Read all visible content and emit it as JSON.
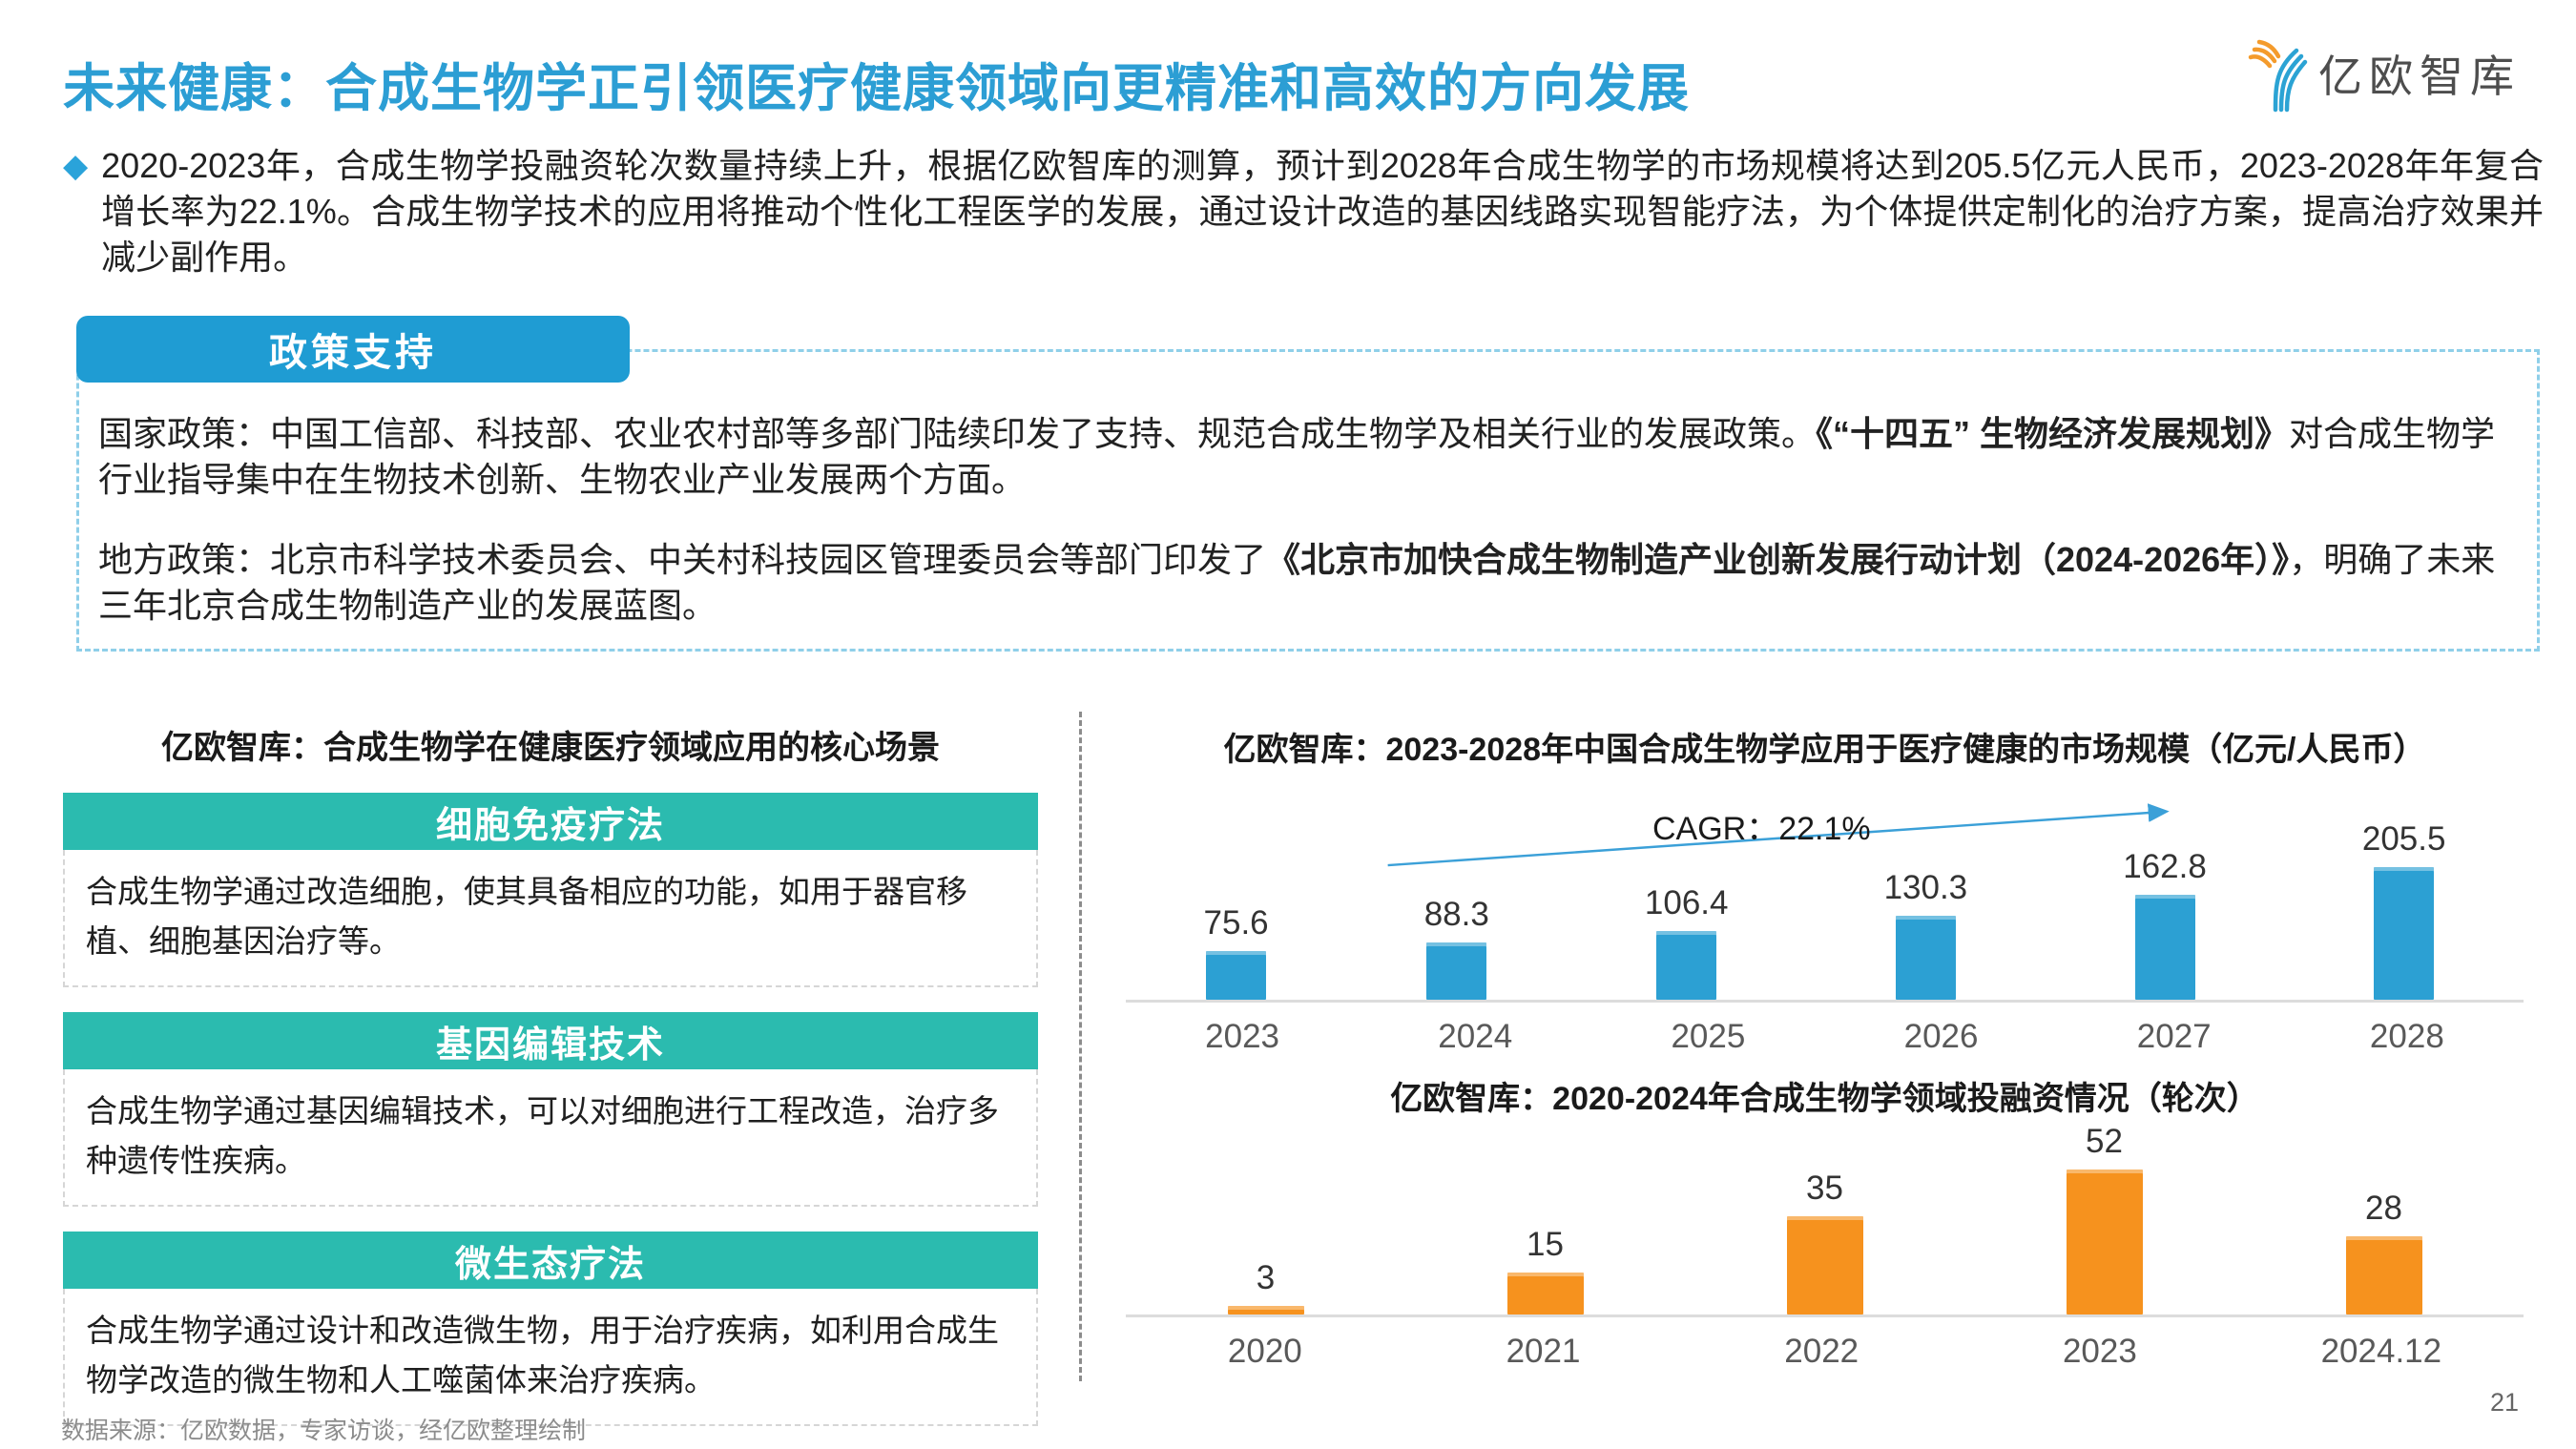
{
  "page": {
    "title": "未来健康：合成生物学正引领医疗健康领域向更精准和高效的方向发展",
    "logo_text": "亿欧智库",
    "page_number": "21",
    "source_note": "数据来源：亿欧数据，专家访谈，经亿欧整理绘制"
  },
  "summary": {
    "bullet": "◆",
    "text": "2020-2023年，合成生物学投融资轮次数量持续上升，根据亿欧智库的测算，预计到2028年合成生物学的市场规模将达到205.5亿元人民币，2023-2028年年复合增长率为22.1%。合成生物学技术的应用将推动个性化工程医学的发展，通过设计改造的基因线路实现智能疗法，为个体提供定制化的治疗方案，提高治疗效果并减少副作用。"
  },
  "policy": {
    "badge": "政策支持",
    "national": {
      "prefix": "国家政策：中国工信部、科技部、农业农村部等多部门陆续印发了支持、规范合成生物学及相关行业的发展政策。",
      "bold": "《“十四五” 生物经济发展规划》",
      "suffix": "对合成生物学行业指导集中在生物技术创新、生物农业产业发展两个方面。"
    },
    "local": {
      "prefix": "地方政策：北京市科学技术委员会、中关村科技园区管理委员会等部门印发了",
      "bold": "《北京市加快合成生物制造产业创新发展行动计划（2024-2026年）》",
      "suffix": "，明确了未来三年北京合成生物制造产业的发展蓝图。"
    }
  },
  "scenarios": {
    "title": "亿欧智库：合成生物学在健康医疗领域应用的核心场景",
    "cards": [
      {
        "header": "细胞免疫疗法",
        "body": "合成生物学通过改造细胞，使其具备相应的功能，如用于器官移植、细胞基因治疗等。"
      },
      {
        "header": "基因编辑技术",
        "body": "合成生物学通过基因编辑技术，可以对细胞进行工程改造，治疗多种遗传性疾病。"
      },
      {
        "header": "微生态疗法",
        "body": "合成生物学通过设计和改造微生物，用于治疗疾病，如利用合成生物学改造的微生物和人工噬菌体来治疗疾病。"
      }
    ]
  },
  "chart_data": [
    {
      "type": "bar",
      "title": "亿欧智库：2023-2028年中国合成生物学应用于医疗健康的市场规模（亿元/人民币）",
      "categories": [
        "2023",
        "2024",
        "2025",
        "2026",
        "2027",
        "2028"
      ],
      "values": [
        75.6,
        88.3,
        106.4,
        130.3,
        162.8,
        205.5
      ],
      "annotation": "CAGR：22.1%",
      "bar_color": "#2ca0d3",
      "ylim": [
        0,
        220
      ],
      "grid": false,
      "data_labels": true,
      "legend": "none"
    },
    {
      "type": "bar",
      "title": "亿欧智库：2020-2024年合成生物学领域投融资情况（轮次）",
      "categories": [
        "2020",
        "2021",
        "2022",
        "2023",
        "2024.12"
      ],
      "values": [
        3,
        15,
        35,
        52,
        28
      ],
      "bar_color": "#f6921e",
      "ylim": [
        0,
        56
      ],
      "grid": false,
      "data_labels": true,
      "legend": "none"
    }
  ],
  "colors": {
    "title_blue": "#2c9ed4",
    "badge_blue": "#1f9cd3",
    "dashed_blue": "#8fcfe9",
    "teal": "#2bbbaf",
    "bar_blue": "#2ca0d3",
    "bar_orange": "#f6921e",
    "arrow_blue": "#3ba0d8",
    "logo_orange": "#f49b2c",
    "logo_blue": "#2ba3d4"
  }
}
